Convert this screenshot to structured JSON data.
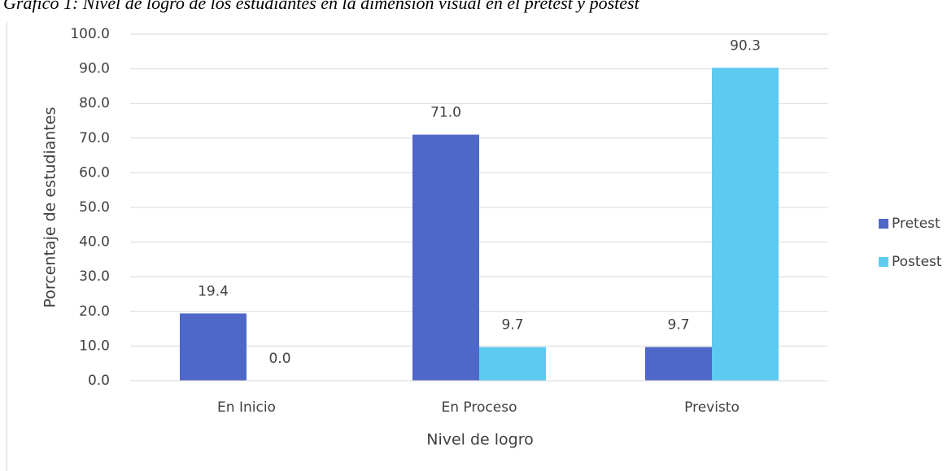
{
  "chart_data": {
    "type": "bar",
    "title": "Gráfico 1: Nivel de logro de los estudiantes en la dimensión visual en el pretest y postest",
    "x_label": "Nivel de logro",
    "y_label": "Porcentaje de estudiantes",
    "categories": [
      "En Inicio",
      "En Proceso",
      "Previsto"
    ],
    "series": [
      {
        "name": "Pretest",
        "color": "#4f67c8",
        "values": [
          19.4,
          71.0,
          9.7
        ],
        "value_labels": [
          "19.4",
          "71.0",
          "9.7"
        ]
      },
      {
        "name": "Postest",
        "color": "#5dcbf0",
        "values": [
          0.0,
          9.7,
          90.3
        ],
        "value_labels": [
          "0.0",
          "9.7",
          "90.3"
        ]
      }
    ],
    "ylim": [
      0,
      100
    ],
    "yticks": [
      {
        "value": 0,
        "label": "0.0"
      },
      {
        "value": 10,
        "label": "10.0"
      },
      {
        "value": 20,
        "label": "20.0"
      },
      {
        "value": 30,
        "label": "30.0"
      },
      {
        "value": 40,
        "label": "40.0"
      },
      {
        "value": 50,
        "label": "50.0"
      },
      {
        "value": 60,
        "label": "60.0"
      },
      {
        "value": 70,
        "label": "70.0"
      },
      {
        "value": 80,
        "label": "80.0"
      },
      {
        "value": 90,
        "label": "90.0"
      },
      {
        "value": 100,
        "label": "100.0"
      }
    ],
    "grid": true,
    "legend": "right"
  }
}
